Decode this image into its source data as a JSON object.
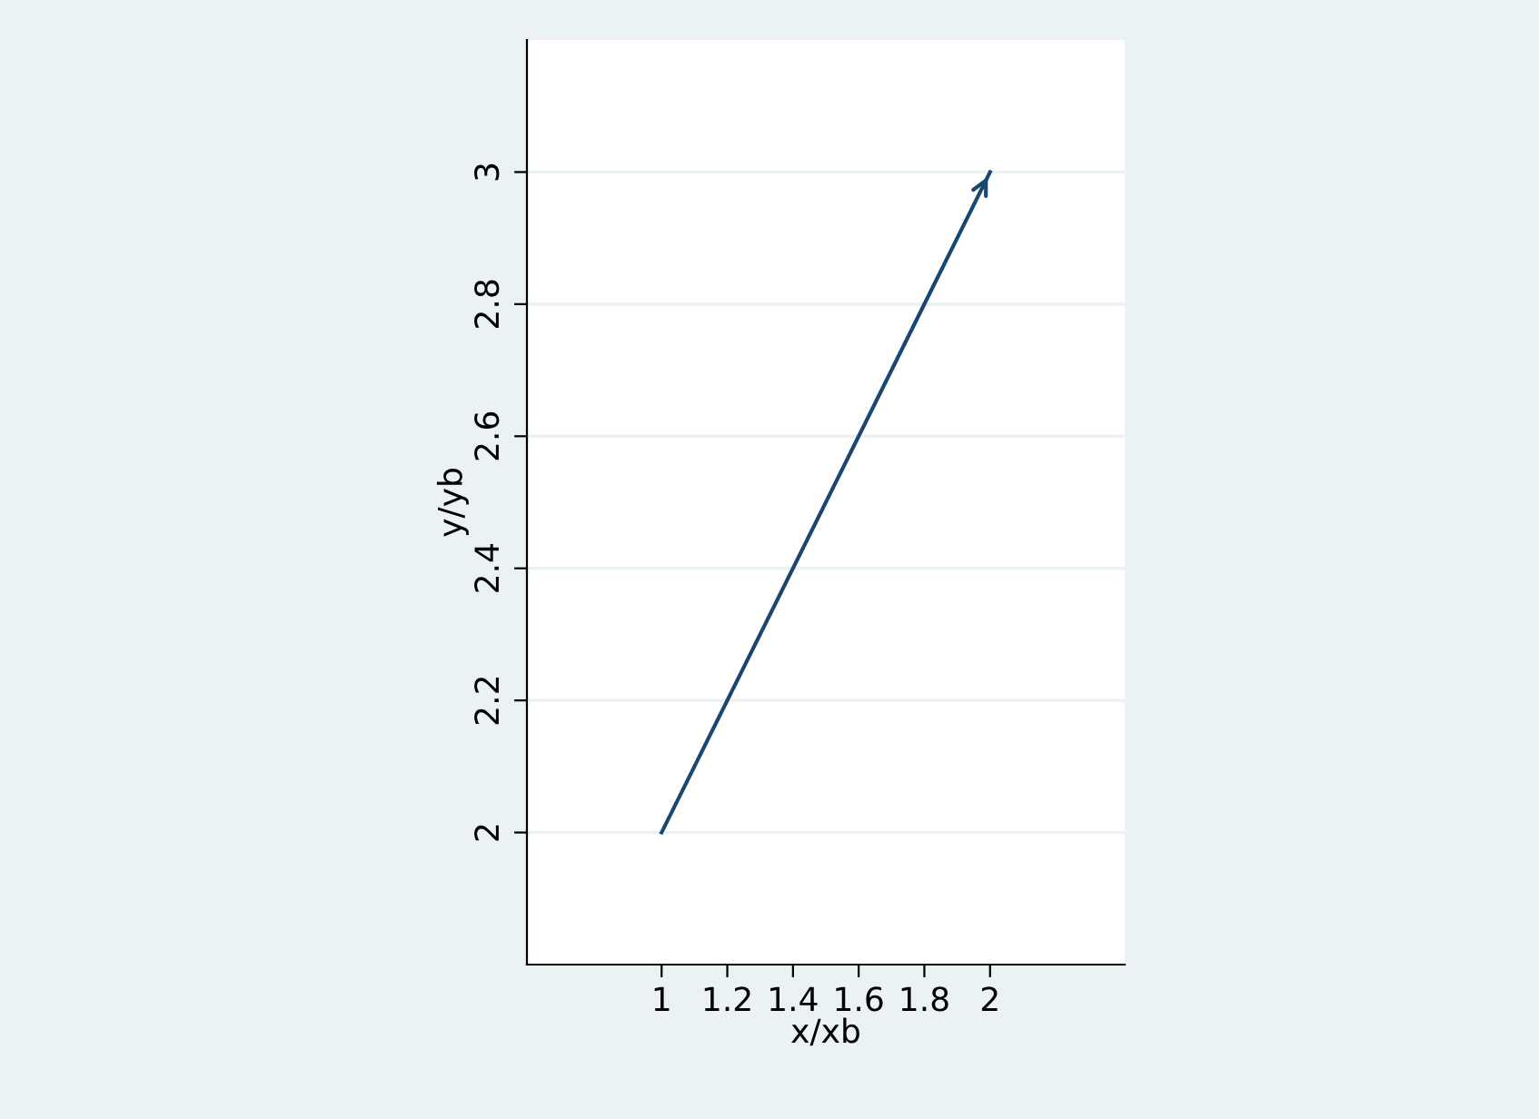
{
  "chart_data": {
    "type": "line",
    "xlabel": "x/xb",
    "ylabel": "y/yb",
    "x": [
      1,
      2
    ],
    "series": [
      {
        "color": "#1a476f",
        "values": [
          2,
          3
        ]
      }
    ],
    "xlim": [
      0.59,
      2.41
    ],
    "ylim": [
      1.8,
      3.2
    ],
    "xticks": [
      1,
      1.2,
      1.4,
      1.6,
      1.8,
      2
    ],
    "yticks": [
      2,
      2.2,
      2.4,
      2.6,
      2.8,
      3
    ],
    "grid": "y",
    "marker": "none",
    "line_style": "solid",
    "legend": false
  }
}
